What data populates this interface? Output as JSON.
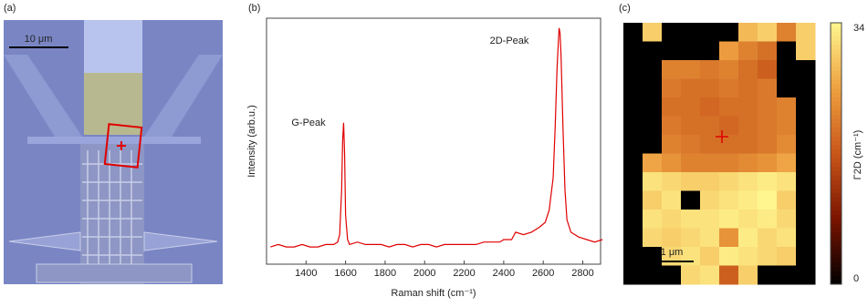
{
  "panel_labels": [
    "(a)",
    "(b)",
    "(c)"
  ],
  "image": {
    "scale_bar": "10 μm"
  },
  "chart_data": [
    {
      "type": "line",
      "xlabel": "Raman shift (cm⁻¹)",
      "ylabel": "Intensity (arb.u.)",
      "annotations": [
        "G-Peak",
        "2D-Peak"
      ],
      "color": "#e00000",
      "x": [
        1220,
        1260,
        1300,
        1340,
        1380,
        1420,
        1460,
        1500,
        1540,
        1560,
        1570,
        1580,
        1585,
        1590,
        1595,
        1600,
        1610,
        1620,
        1660,
        1700,
        1740,
        1780,
        1820,
        1860,
        1900,
        1940,
        1980,
        2020,
        2060,
        2100,
        2140,
        2180,
        2220,
        2260,
        2300,
        2340,
        2380,
        2400,
        2440,
        2460,
        2500,
        2540,
        2580,
        2610,
        2630,
        2650,
        2660,
        2670,
        2680,
        2685,
        2690,
        2700,
        2710,
        2720,
        2740,
        2780,
        2820,
        2860,
        2900
      ],
      "values": [
        0.07,
        0.08,
        0.07,
        0.07,
        0.08,
        0.07,
        0.07,
        0.08,
        0.08,
        0.09,
        0.12,
        0.3,
        0.5,
        0.575,
        0.45,
        0.2,
        0.1,
        0.08,
        0.09,
        0.08,
        0.08,
        0.08,
        0.07,
        0.08,
        0.08,
        0.07,
        0.08,
        0.08,
        0.07,
        0.08,
        0.08,
        0.08,
        0.08,
        0.08,
        0.09,
        0.09,
        0.09,
        0.1,
        0.1,
        0.13,
        0.12,
        0.13,
        0.15,
        0.17,
        0.22,
        0.35,
        0.55,
        0.8,
        0.96,
        0.94,
        0.85,
        0.55,
        0.3,
        0.18,
        0.13,
        0.11,
        0.1,
        0.09,
        0.1
      ],
      "xlim": [
        1200,
        2890
      ],
      "ylim": [
        0,
        1
      ],
      "xticks": [
        1400,
        1600,
        1800,
        2000,
        2200,
        2400,
        2600,
        2800
      ]
    },
    {
      "type": "heatmap",
      "scale_bar": "1 μm",
      "colormap": [
        "#000000",
        "#7a1400",
        "#c8561a",
        "#eea040",
        "#fff68f"
      ],
      "clim": [
        0,
        34
      ],
      "cticks": [
        0,
        34
      ],
      "clabel": "Γ2D (cm⁻¹)",
      "values": [
        [
          0,
          30,
          0,
          0,
          0,
          0,
          28,
          30,
          22,
          30
        ],
        [
          0,
          0,
          0,
          0,
          0,
          25,
          22,
          20,
          0,
          30
        ],
        [
          0,
          0,
          22,
          22,
          21,
          22,
          20,
          18,
          0,
          0
        ],
        [
          0,
          0,
          21,
          20,
          20,
          21,
          20,
          21,
          0,
          0
        ],
        [
          0,
          0,
          20,
          20,
          19,
          20,
          20,
          21,
          22,
          0
        ],
        [
          0,
          0,
          21,
          20,
          20,
          19,
          20,
          21,
          22,
          0
        ],
        [
          0,
          0,
          22,
          21,
          20,
          20,
          20,
          21,
          23,
          0
        ],
        [
          0,
          26,
          24,
          22,
          22,
          22,
          23,
          24,
          26,
          0
        ],
        [
          0,
          32,
          31,
          30,
          30,
          31,
          32,
          33,
          32,
          0
        ],
        [
          0,
          30,
          32,
          0,
          31,
          32,
          33,
          34,
          30,
          0
        ],
        [
          0,
          32,
          31,
          32,
          32,
          33,
          32,
          33,
          31,
          0
        ],
        [
          0,
          31,
          30,
          31,
          32,
          24,
          33,
          31,
          32,
          0
        ],
        [
          0,
          0,
          31,
          32,
          30,
          33,
          32,
          31,
          30,
          0
        ],
        [
          0,
          0,
          0,
          31,
          32,
          18,
          30,
          0,
          0,
          0
        ]
      ]
    }
  ]
}
